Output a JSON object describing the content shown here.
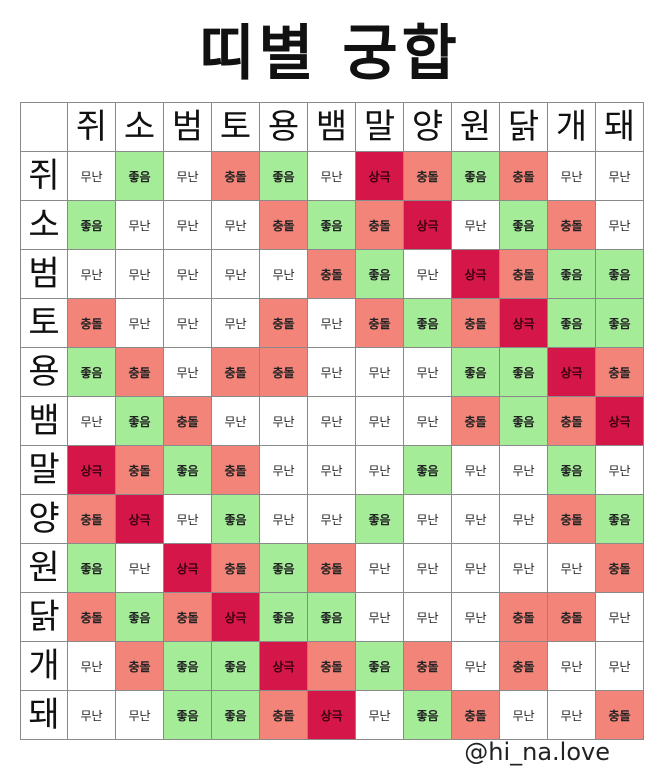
{
  "title": "띠별 궁합",
  "credit": "@hi_na.love",
  "animals": [
    "쥐",
    "소",
    "범",
    "토",
    "용",
    "뱀",
    "말",
    "양",
    "원",
    "닭",
    "개",
    "돼"
  ],
  "legend_colors": {
    "무난": "#ffffff",
    "좋음": "#a4ec98",
    "충돌": "#f2847a",
    "상극": "#d41649"
  },
  "rows": [
    [
      "무난",
      "좋음",
      "무난",
      "충돌",
      "좋음",
      "무난",
      "상극",
      "충돌",
      "좋음",
      "충돌",
      "무난",
      "무난"
    ],
    [
      "좋음",
      "무난",
      "무난",
      "무난",
      "충돌",
      "좋음",
      "충돌",
      "상극",
      "무난",
      "좋음",
      "충돌",
      "무난"
    ],
    [
      "무난",
      "무난",
      "무난",
      "무난",
      "무난",
      "충돌",
      "좋음",
      "무난",
      "상극",
      "충돌",
      "좋음",
      "좋음"
    ],
    [
      "충돌",
      "무난",
      "무난",
      "무난",
      "충돌",
      "무난",
      "충돌",
      "좋음",
      "충돌",
      "상극",
      "좋음",
      "좋음"
    ],
    [
      "좋음",
      "충돌",
      "무난",
      "충돌",
      "충돌",
      "무난",
      "무난",
      "무난",
      "좋음",
      "좋음",
      "상극",
      "충돌"
    ],
    [
      "무난",
      "좋음",
      "충돌",
      "무난",
      "무난",
      "무난",
      "무난",
      "무난",
      "충돌",
      "좋음",
      "충돌",
      "상극"
    ],
    [
      "상극",
      "충돌",
      "좋음",
      "충돌",
      "무난",
      "무난",
      "무난",
      "좋음",
      "무난",
      "무난",
      "좋음",
      "무난"
    ],
    [
      "충돌",
      "상극",
      "무난",
      "좋음",
      "무난",
      "무난",
      "좋음",
      "무난",
      "무난",
      "무난",
      "충돌",
      "좋음"
    ],
    [
      "좋음",
      "무난",
      "상극",
      "충돌",
      "좋음",
      "충돌",
      "무난",
      "무난",
      "무난",
      "무난",
      "무난",
      "충돌"
    ],
    [
      "충돌",
      "좋음",
      "충돌",
      "상극",
      "좋음",
      "좋음",
      "무난",
      "무난",
      "무난",
      "충돌",
      "충돌",
      "무난"
    ],
    [
      "무난",
      "충돌",
      "좋음",
      "좋음",
      "상극",
      "충돌",
      "좋음",
      "충돌",
      "무난",
      "충돌",
      "무난",
      "무난"
    ],
    [
      "무난",
      "무난",
      "좋음",
      "좋음",
      "충돌",
      "상극",
      "무난",
      "좋음",
      "충돌",
      "무난",
      "무난",
      "충돌"
    ]
  ]
}
